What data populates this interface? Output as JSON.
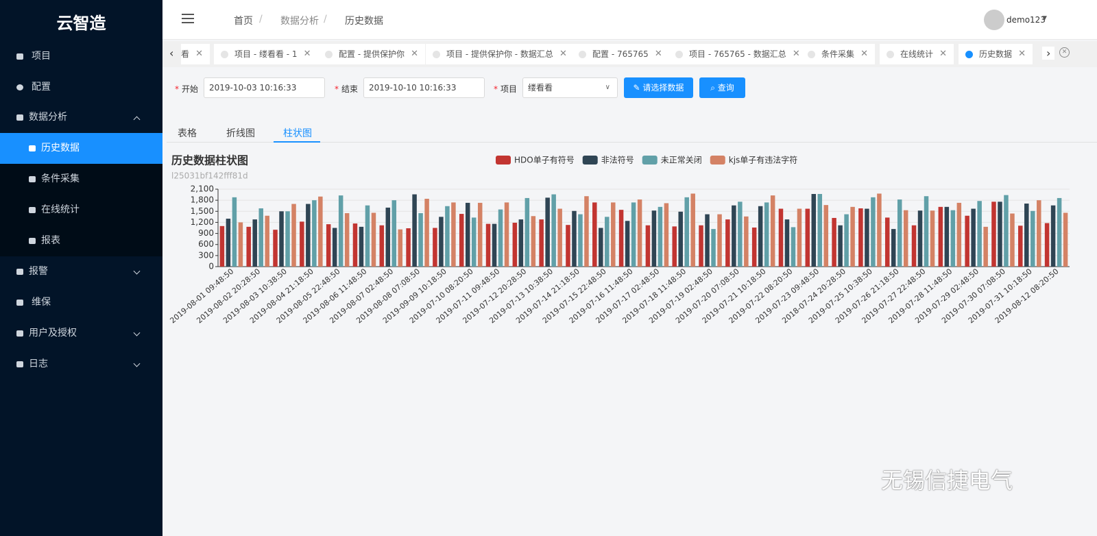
{
  "sidebar": {
    "brand": "云智造",
    "menu": [
      "项目",
      "配置",
      "数据分析",
      "报警",
      "维保",
      "用户及授权",
      "日志"
    ],
    "submenu": [
      "历史数据",
      "条件采集",
      "在线统计",
      "报表"
    ]
  },
  "header": {
    "breadcrumb": [
      "首页",
      "数据分析",
      "历史数据"
    ],
    "user": "demo123"
  },
  "tabs": [
    "看",
    "项目 - 缕看看 - 1",
    "配置 - 提供保护你",
    "项目 - 提供保护你 - 数据汇总",
    "配置 - 765765",
    "项目 - 765765 - 数据汇总",
    "条件采集",
    "在线统计",
    "历史数据"
  ],
  "form": {
    "start_label": "开始",
    "start_value": "2019-10-03 10:16:33",
    "end_label": "结束",
    "end_value": "2019-10-10 10:16:33",
    "project_label": "项目",
    "project_value": "缕看看",
    "select_button": "请选择数据",
    "query_button": "查询"
  },
  "view_tabs": [
    "表格",
    "折线图",
    "柱状图"
  ],
  "chart_data": {
    "type": "bar",
    "title": "历史数据柱状图",
    "subtitle": "l25031bf142fff81d",
    "categories": [
      "2019-08-01 09:48:50",
      "2019-08-02 20:28:50",
      "2019-08-03 10:38:50",
      "2019-08-04 21:18:50",
      "2019-08-05 22:48:50",
      "2019-08-06 11:48:50",
      "2019-08-07 02:48:50",
      "2019-08-08 07:08:50",
      "2019-09-09 10:18:50",
      "2019-07-10 08:20:50",
      "2019-07-11 09:48:50",
      "2019-07-12 20:28:50",
      "2019-07-13 10:38:50",
      "2019-07-14 21:18:50",
      "2019-07-15 22:48:50",
      "2019-07-16 11:48:50",
      "2019-07-17 02:48:50",
      "2019-07-18 11:48:50",
      "2019-07-19 02:48:50",
      "2019-07-20 07:08:50",
      "2019-07-21 10:18:50",
      "2019-07-22 08:20:50",
      "2019-07-23 09:48:50",
      "2018-07-24 20:28:50",
      "2019-07-25 10:38:50",
      "2019-07-26 21:18:50",
      "2019-07-27 22:48:50",
      "2019-07-28 11:48:50",
      "2019-07-29 02:48:50",
      "2019-07-30 07:08:50",
      "2019-07-31 10:18:50",
      "2019-08-12 08:20:50"
    ],
    "series": [
      {
        "name": "HDO单子有符号",
        "color": "#c23531",
        "values": [
          1100,
          1080,
          1000,
          1220,
          1150,
          1170,
          1120,
          1040,
          1050,
          1430,
          1160,
          1190,
          1280,
          1130,
          1740,
          1540,
          1120,
          1090,
          1120,
          1280,
          1060,
          1570,
          1570,
          1320,
          1580,
          1330,
          1120,
          1620,
          1380,
          1760,
          1110,
          1180
        ]
      },
      {
        "name": "非法符号",
        "color": "#2f4554",
        "values": [
          1300,
          1280,
          1500,
          1700,
          1050,
          1080,
          1600,
          1960,
          1350,
          1730,
          1160,
          1280,
          1870,
          1510,
          1050,
          1240,
          1520,
          1490,
          1420,
          1660,
          1640,
          1280,
          1970,
          1120,
          1570,
          1020,
          1520,
          1620,
          1570,
          1760,
          1710,
          1660
        ]
      },
      {
        "name": "未正常关闭",
        "color": "#61a0a8",
        "values": [
          1880,
          1580,
          1500,
          1800,
          1930,
          1660,
          1800,
          1450,
          1640,
          1330,
          1550,
          1860,
          1960,
          1420,
          1350,
          1740,
          1620,
          1880,
          1020,
          1760,
          1740,
          1070,
          1970,
          1420,
          1880,
          1820,
          1910,
          1530,
          1780,
          1940,
          1510,
          1860
        ]
      },
      {
        "name": "kjs单子有违法字符",
        "color": "#d48265",
        "values": [
          1200,
          1380,
          1700,
          1900,
          1450,
          1460,
          1010,
          1840,
          1740,
          1730,
          1740,
          1370,
          1570,
          1910,
          1740,
          1820,
          1720,
          1980,
          1420,
          1360,
          1930,
          1570,
          1670,
          1620,
          1980,
          1530,
          1520,
          1730,
          1080,
          1440,
          1800,
          1460
        ]
      }
    ],
    "ylim": [
      0,
      2100
    ],
    "yticks": [
      0,
      300,
      600,
      900,
      {
        "value": 1200,
        "label": "1,200"
      },
      {
        "value": 1500,
        "label": "1,500"
      },
      {
        "value": 1800,
        "label": "1,800"
      },
      {
        "value": 2100,
        "label": "2,100"
      }
    ],
    "grid": true
  },
  "watermark": "无锡信捷电气"
}
